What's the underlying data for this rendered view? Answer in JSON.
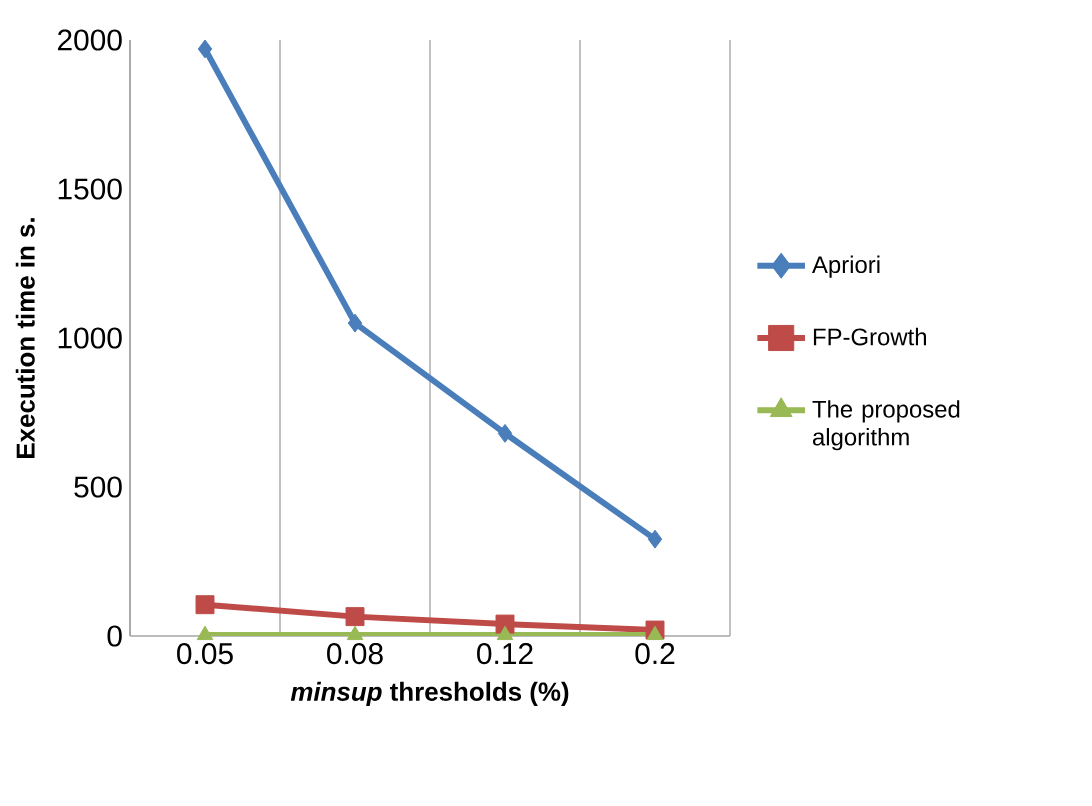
{
  "chart_data": {
    "type": "line",
    "xlabel": "*minsup* thresholds (%)",
    "ylabel": "Execution time in s.",
    "categories": [
      "0.05",
      "0.08",
      "0.12",
      "0.2"
    ],
    "series": [
      {
        "name": "Apriori",
        "color": "#4a7ebb",
        "values": [
          1970,
          1050,
          680,
          325
        ],
        "marker": "diamond"
      },
      {
        "name": "FP-Growth",
        "color": "#be4b48",
        "values": [
          105,
          65,
          40,
          20
        ],
        "marker": "square"
      },
      {
        "name": "The proposed algorithm",
        "color": "#98b954",
        "values": [
          3,
          3,
          3,
          3
        ],
        "marker": "triangle"
      }
    ],
    "ylim": [
      0,
      2000
    ],
    "yticks": [
      0,
      500,
      1000,
      1500,
      2000
    ],
    "grid": "x",
    "legend": "right",
    "line_style": "solid"
  }
}
